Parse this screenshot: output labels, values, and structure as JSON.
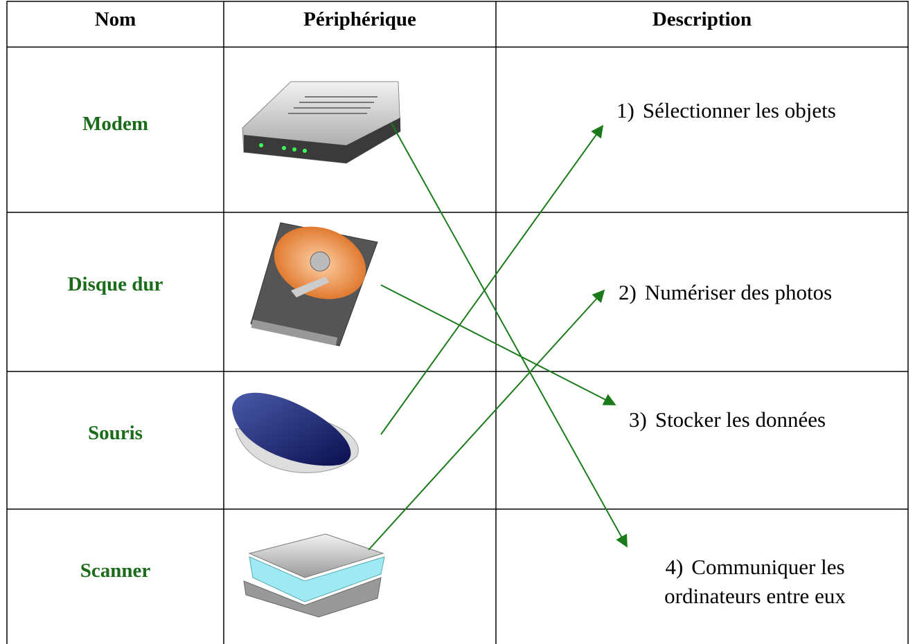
{
  "header": {
    "columns": [
      "Nom",
      "Périphérique",
      "Description"
    ]
  },
  "names": [
    "Modem",
    "Disque dur",
    "Souris",
    "Scanner"
  ],
  "descriptions": [
    {
      "number": "1)",
      "text": "Sélectionner les objets"
    },
    {
      "number": "2)",
      "text": "Numériser des photos"
    },
    {
      "number": "3)",
      "text": "Stocker les données"
    },
    {
      "number": "4)",
      "text": "Communiquer les ordinateurs entre eux"
    }
  ]
}
